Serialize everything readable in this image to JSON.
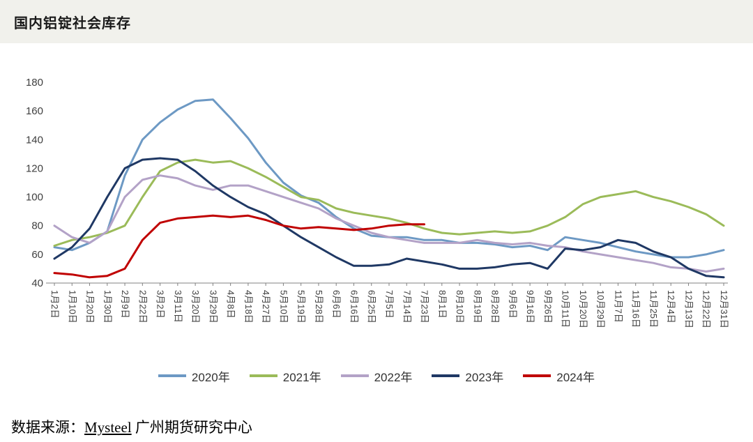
{
  "header": {
    "title": "国内铝锭社会库存"
  },
  "footer": {
    "prefix": "数据来源：",
    "source": "Mysteel",
    "suffix": " 广州期货研究中心"
  },
  "chart_data": {
    "type": "line",
    "title": "国内铝锭社会库存",
    "xlabel": "",
    "ylabel": "",
    "ylim": [
      40,
      180
    ],
    "yticks": [
      40,
      60,
      80,
      100,
      120,
      140,
      160,
      180
    ],
    "grid": false,
    "legend_position": "bottom",
    "axis_color": "#808080",
    "tick_label_color": "#3f3f3f",
    "categories": [
      "1月2日",
      "1月10日",
      "1月20日",
      "1月30日",
      "2月9日",
      "2月22日",
      "3月2日",
      "3月11日",
      "3月20日",
      "3月29日",
      "4月8日",
      "4月18日",
      "4月27日",
      "5月10日",
      "5月19日",
      "5月28日",
      "6月6日",
      "6月16日",
      "6月25日",
      "7月5日",
      "7月14日",
      "7月23日",
      "8月1日",
      "8月10日",
      "8月19日",
      "8月28日",
      "9月6日",
      "9月16日",
      "9月26日",
      "10月11日",
      "10月20日",
      "10月29日",
      "11月7日",
      "11月16日",
      "11月25日",
      "12月4日",
      "12月13日",
      "12月22日",
      "12月31日"
    ],
    "series": [
      {
        "name": "2020年",
        "color": "#6d99c4",
        "values": [
          65,
          63,
          68,
          76,
          115,
          140,
          152,
          161,
          167,
          168,
          155,
          141,
          124,
          110,
          101,
          96,
          86,
          78,
          73,
          72,
          72,
          70,
          70,
          68,
          68,
          67,
          65,
          66,
          63,
          72,
          70,
          68,
          65,
          62,
          60,
          58,
          58,
          60,
          63
        ]
      },
      {
        "name": "2021年",
        "color": "#9bbb59",
        "values": [
          66,
          70,
          72,
          75,
          80,
          100,
          118,
          124,
          126,
          124,
          125,
          120,
          114,
          107,
          100,
          98,
          92,
          89,
          87,
          85,
          82,
          78,
          75,
          74,
          75,
          76,
          75,
          76,
          80,
          86,
          95,
          100,
          102,
          104,
          100,
          97,
          93,
          88,
          80
        ]
      },
      {
        "name": "2022年",
        "color": "#b3a2c7",
        "values": [
          80,
          72,
          68,
          76,
          100,
          112,
          115,
          113,
          108,
          105,
          108,
          108,
          104,
          100,
          96,
          92,
          85,
          80,
          75,
          72,
          70,
          68,
          68,
          68,
          70,
          68,
          67,
          68,
          66,
          65,
          62,
          60,
          58,
          56,
          54,
          51,
          50,
          48,
          50
        ]
      },
      {
        "name": "2023年",
        "color": "#1f3864",
        "values": [
          57,
          65,
          78,
          100,
          120,
          126,
          127,
          126,
          118,
          108,
          100,
          93,
          88,
          80,
          72,
          65,
          58,
          52,
          52,
          53,
          57,
          55,
          53,
          50,
          50,
          51,
          53,
          54,
          50,
          64,
          63,
          65,
          70,
          68,
          62,
          58,
          50,
          45,
          44
        ]
      },
      {
        "name": "2024年",
        "color": "#c00000",
        "values": [
          47,
          46,
          44,
          45,
          50,
          70,
          82,
          85,
          86,
          87,
          86,
          87,
          84,
          80,
          78,
          79,
          78,
          77,
          78,
          80,
          81,
          81,
          null,
          null,
          null,
          null,
          null,
          null,
          null,
          null,
          null,
          null,
          null,
          null,
          null,
          null,
          null,
          null,
          null
        ]
      }
    ]
  }
}
